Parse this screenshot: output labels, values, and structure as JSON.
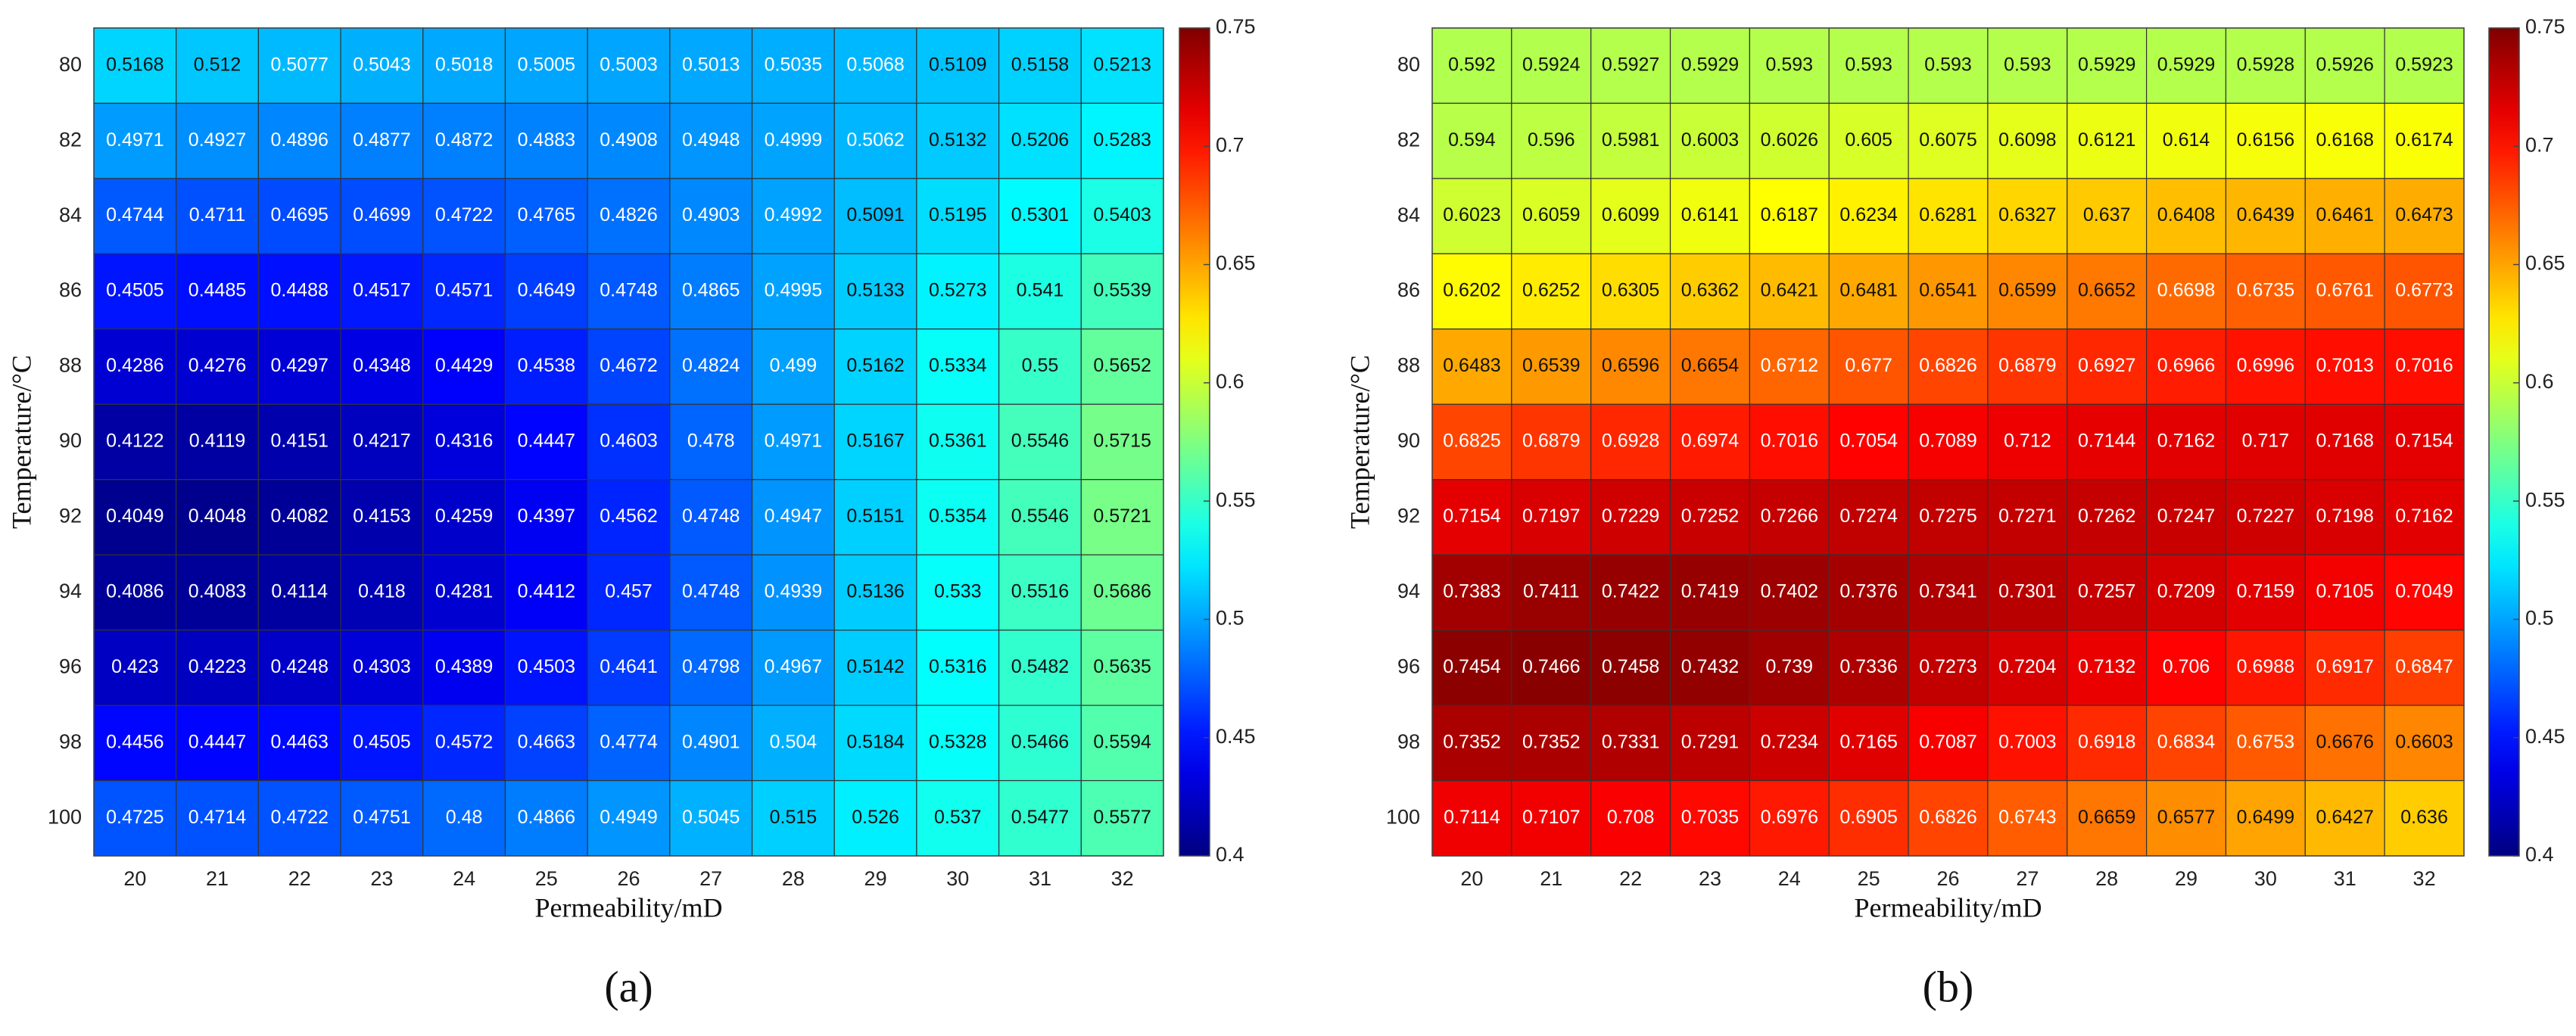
{
  "chart_data": [
    {
      "type": "heatmap",
      "panel_label": "(a)",
      "xlabel": "Permeability/mD",
      "ylabel": "Temperature/°C",
      "x": [
        20,
        21,
        22,
        23,
        24,
        25,
        26,
        27,
        28,
        29,
        30,
        31,
        32
      ],
      "y": [
        80,
        82,
        84,
        86,
        88,
        90,
        92,
        94,
        96,
        98,
        100
      ],
      "values": [
        [
          0.5168,
          0.512,
          0.5077,
          0.5043,
          0.5018,
          0.5005,
          0.5003,
          0.5013,
          0.5035,
          0.5068,
          0.5109,
          0.5158,
          0.5213
        ],
        [
          0.4971,
          0.4927,
          0.4896,
          0.4877,
          0.4872,
          0.4883,
          0.4908,
          0.4948,
          0.4999,
          0.5062,
          0.5132,
          0.5206,
          0.5283
        ],
        [
          0.4744,
          0.4711,
          0.4695,
          0.4699,
          0.4722,
          0.4765,
          0.4826,
          0.4903,
          0.4992,
          0.5091,
          0.5195,
          0.5301,
          0.5403
        ],
        [
          0.4505,
          0.4485,
          0.4488,
          0.4517,
          0.4571,
          0.4649,
          0.4748,
          0.4865,
          0.4995,
          0.5133,
          0.5273,
          0.541,
          0.5539
        ],
        [
          0.4286,
          0.4276,
          0.4297,
          0.4348,
          0.4429,
          0.4538,
          0.4672,
          0.4824,
          0.499,
          0.5162,
          0.5334,
          0.55,
          0.5652
        ],
        [
          0.4122,
          0.4119,
          0.4151,
          0.4217,
          0.4316,
          0.4447,
          0.4603,
          0.478,
          0.4971,
          0.5167,
          0.5361,
          0.5546,
          0.5715
        ],
        [
          0.4049,
          0.4048,
          0.4082,
          0.4153,
          0.4259,
          0.4397,
          0.4562,
          0.4748,
          0.4947,
          0.5151,
          0.5354,
          0.5546,
          0.5721
        ],
        [
          0.4086,
          0.4083,
          0.4114,
          0.418,
          0.4281,
          0.4412,
          0.457,
          0.4748,
          0.4939,
          0.5136,
          0.533,
          0.5516,
          0.5686
        ],
        [
          0.423,
          0.4223,
          0.4248,
          0.4303,
          0.4389,
          0.4503,
          0.4641,
          0.4798,
          0.4967,
          0.5142,
          0.5316,
          0.5482,
          0.5635
        ],
        [
          0.4456,
          0.4447,
          0.4463,
          0.4505,
          0.4572,
          0.4663,
          0.4774,
          0.4901,
          0.504,
          0.5184,
          0.5328,
          0.5466,
          0.5594
        ],
        [
          0.4725,
          0.4714,
          0.4722,
          0.4751,
          0.48,
          0.4866,
          0.4949,
          0.5045,
          0.515,
          0.526,
          0.537,
          0.5477,
          0.5577
        ]
      ],
      "colormap": "jet",
      "clim": [
        0.4,
        0.75
      ],
      "cticks": [
        0.4,
        0.45,
        0.5,
        0.55,
        0.6,
        0.65,
        0.7,
        0.75
      ]
    },
    {
      "type": "heatmap",
      "panel_label": "(b)",
      "xlabel": "Permeability/mD",
      "ylabel": "Temperature/°C",
      "x": [
        20,
        21,
        22,
        23,
        24,
        25,
        26,
        27,
        28,
        29,
        30,
        31,
        32
      ],
      "y": [
        80,
        82,
        84,
        86,
        88,
        90,
        92,
        94,
        96,
        98,
        100
      ],
      "values": [
        [
          0.592,
          0.5924,
          0.5927,
          0.5929,
          0.593,
          0.593,
          0.593,
          0.593,
          0.5929,
          0.5929,
          0.5928,
          0.5926,
          0.5923
        ],
        [
          0.594,
          0.596,
          0.5981,
          0.6003,
          0.6026,
          0.605,
          0.6075,
          0.6098,
          0.6121,
          0.614,
          0.6156,
          0.6168,
          0.6174
        ],
        [
          0.6023,
          0.6059,
          0.6099,
          0.6141,
          0.6187,
          0.6234,
          0.6281,
          0.6327,
          0.637,
          0.6408,
          0.6439,
          0.6461,
          0.6473
        ],
        [
          0.6202,
          0.6252,
          0.6305,
          0.6362,
          0.6421,
          0.6481,
          0.6541,
          0.6599,
          0.6652,
          0.6698,
          0.6735,
          0.6761,
          0.6773
        ],
        [
          0.6483,
          0.6539,
          0.6596,
          0.6654,
          0.6712,
          0.677,
          0.6826,
          0.6879,
          0.6927,
          0.6966,
          0.6996,
          0.7013,
          0.7016
        ],
        [
          0.6825,
          0.6879,
          0.6928,
          0.6974,
          0.7016,
          0.7054,
          0.7089,
          0.712,
          0.7144,
          0.7162,
          0.717,
          0.7168,
          0.7154
        ],
        [
          0.7154,
          0.7197,
          0.7229,
          0.7252,
          0.7266,
          0.7274,
          0.7275,
          0.7271,
          0.7262,
          0.7247,
          0.7227,
          0.7198,
          0.7162
        ],
        [
          0.7383,
          0.7411,
          0.7422,
          0.7419,
          0.7402,
          0.7376,
          0.7341,
          0.7301,
          0.7257,
          0.7209,
          0.7159,
          0.7105,
          0.7049
        ],
        [
          0.7454,
          0.7466,
          0.7458,
          0.7432,
          0.739,
          0.7336,
          0.7273,
          0.7204,
          0.7132,
          0.706,
          0.6988,
          0.6917,
          0.6847
        ],
        [
          0.7352,
          0.7352,
          0.7331,
          0.7291,
          0.7234,
          0.7165,
          0.7087,
          0.7003,
          0.6918,
          0.6834,
          0.6753,
          0.6676,
          0.6603
        ],
        [
          0.7114,
          0.7107,
          0.708,
          0.7035,
          0.6976,
          0.6905,
          0.6826,
          0.6743,
          0.6659,
          0.6577,
          0.6499,
          0.6427,
          0.636
        ]
      ],
      "colormap": "jet",
      "clim": [
        0.4,
        0.75
      ],
      "cticks": [
        0.4,
        0.45,
        0.5,
        0.55,
        0.6,
        0.65,
        0.7,
        0.75
      ]
    }
  ]
}
